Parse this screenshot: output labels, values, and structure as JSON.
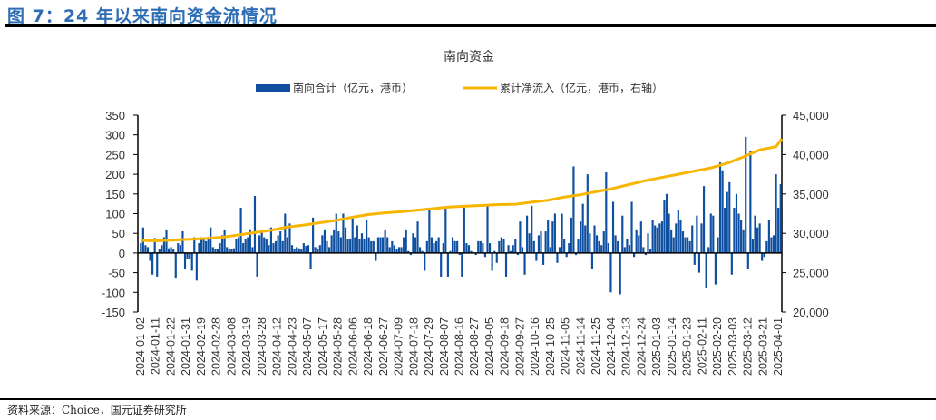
{
  "figure_title": "图 7：24 年以来南向资金流情况",
  "source": "资料来源：Choice，国元证券研究所",
  "colors": {
    "bars": "#0e4fa0",
    "line": "#f7b500",
    "title": "#2e6db4"
  },
  "chart_data": {
    "type": "bar+line",
    "title": "南向资金",
    "legend_position": "top",
    "grid": false,
    "series": [
      {
        "name": "南向合计（亿元，港币）",
        "type": "bar",
        "axis": "left",
        "values": [
          25,
          65,
          20,
          15,
          -20,
          -55,
          38,
          -60,
          10,
          20,
          40,
          60,
          12,
          15,
          10,
          -65,
          25,
          20,
          55,
          -40,
          -15,
          -15,
          -45,
          40,
          -70,
          25,
          40,
          35,
          30,
          40,
          65,
          15,
          10,
          10,
          25,
          45,
          60,
          15,
          10,
          10,
          12,
          35,
          40,
          115,
          25,
          35,
          40,
          60,
          15,
          145,
          -60,
          45,
          55,
          40,
          35,
          20,
          65,
          25,
          30,
          45,
          55,
          30,
          100,
          40,
          75,
          20,
          10,
          15,
          12,
          10,
          25,
          18,
          20,
          -40,
          90,
          15,
          10,
          20,
          45,
          60,
          30,
          15,
          45,
          60,
          100,
          55,
          40,
          100,
          65,
          35,
          35,
          90,
          40,
          70,
          35,
          50,
          35,
          85,
          40,
          30,
          30,
          -20,
          40,
          40,
          40,
          60,
          40,
          15,
          30,
          20,
          10,
          15,
          15,
          40,
          60,
          5,
          -5,
          50,
          40,
          80,
          15,
          5,
          -45,
          30,
          115,
          40,
          25,
          30,
          40,
          -60,
          25,
          115,
          -60,
          5,
          40,
          30,
          30,
          -5,
          -60,
          115,
          25,
          20,
          5,
          0,
          -5,
          30,
          30,
          25,
          -10,
          120,
          25,
          -45,
          5,
          -25,
          30,
          40,
          35,
          -60,
          20,
          5,
          20,
          35,
          -5,
          80,
          15,
          -55,
          95,
          50,
          120,
          30,
          -20,
          45,
          55,
          -30,
          55,
          85,
          15,
          80,
          100,
          -25,
          15,
          100,
          35,
          -10,
          25,
          90,
          220,
          -5,
          35,
          80,
          125,
          70,
          200,
          50,
          -40,
          70,
          45,
          30,
          20,
          55,
          205,
          25,
          -100,
          130,
          45,
          30,
          -105,
          95,
          15,
          35,
          20,
          130,
          -10,
          60,
          45,
          80,
          15,
          -5,
          50,
          10,
          85,
          70,
          65,
          75,
          80,
          135,
          150,
          100,
          60,
          40,
          75,
          110,
          85,
          55,
          40,
          40,
          30,
          70,
          -30,
          95,
          -50,
          75,
          170,
          -90,
          15,
          100,
          95,
          -80,
          40,
          230,
          210,
          115,
          155,
          180,
          -55,
          115,
          150,
          100,
          85,
          60,
          295,
          -40,
          260,
          35,
          95,
          65,
          75,
          -20,
          -10,
          30,
          85,
          40,
          45,
          200,
          115,
          175
        ]
      },
      {
        "name": "累计净流入（亿元，港币，右轴）",
        "type": "line",
        "axis": "right",
        "at_ticks": [
          29100,
          29050,
          29150,
          29250,
          29350,
          29500,
          29800,
          30100,
          30400,
          30800,
          31050,
          31350,
          31650,
          32050,
          32400,
          32600,
          32750,
          32950,
          33150,
          33350,
          33450,
          33550,
          33650,
          33700,
          33950,
          34200,
          34600,
          34900,
          35300,
          35700,
          36200,
          36700,
          37100,
          37500,
          37900,
          38300,
          38900,
          39700,
          40600,
          41000
        ],
        "last_value": 42000
      }
    ],
    "x_tick_labels": [
      "2024-01-02",
      "2024-01-11",
      "2024-01-22",
      "2024-01-31",
      "2024-02-19",
      "2024-02-28",
      "2024-03-08",
      "2024-03-19",
      "2024-03-28",
      "2024-04-12",
      "2024-04-23",
      "2024-05-07",
      "2024-05-17",
      "2024-05-28",
      "2024-06-06",
      "2024-06-18",
      "2024-06-27",
      "2024-07-09",
      "2024-07-18",
      "2024-07-29",
      "2024-08-07",
      "2024-08-16",
      "2024-08-27",
      "2024-09-05",
      "2024-09-18",
      "2024-09-27",
      "2024-10-16",
      "2024-10-25",
      "2024-11-05",
      "2024-11-14",
      "2024-11-25",
      "2024-12-04",
      "2024-12-13",
      "2024-12-24",
      "2025-01-03",
      "2025-01-14",
      "2025-01-23",
      "2025-02-11",
      "2025-02-20",
      "2025-03-03",
      "2025-03-12",
      "2025-03-21",
      "2025-04-01"
    ],
    "tick_every_n_bars": 7,
    "y_left": {
      "range": [
        -150,
        350
      ],
      "ticks": [
        "-150",
        "-100",
        "-50",
        "0",
        "50",
        "100",
        "150",
        "200",
        "250",
        "300",
        "350"
      ]
    },
    "y_right": {
      "range": [
        20000,
        45000
      ],
      "ticks": [
        "20,000",
        "25,000",
        "30,000",
        "35,000",
        "40,000",
        "45,000"
      ]
    }
  }
}
